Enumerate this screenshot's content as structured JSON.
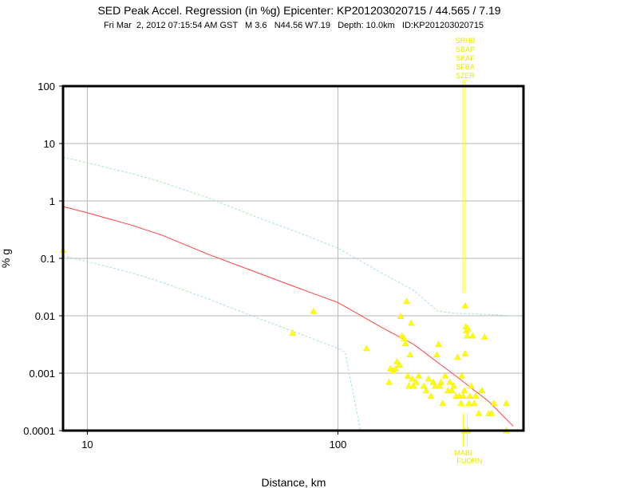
{
  "chart_data": {
    "type": "scatter",
    "title": "SED Peak Accel. Regression (in %g) Epicenter: KP201203020715 / 44.565 / 7.19",
    "subtitle": "Fri Mar  2, 2012 07:15:54 AM GST   M 3.6   N44.56 W7.19   Depth: 10.0km   ID:KP201203020715",
    "xlabel": "Distance, km",
    "ylabel": "% g",
    "xscale": "log",
    "yscale": "log",
    "xlim": [
      8,
      550
    ],
    "ylim": [
      0.0001,
      100
    ],
    "grid": true,
    "x_ticks": [
      {
        "value": 10,
        "label": "10"
      },
      {
        "value": 100,
        "label": "100"
      }
    ],
    "y_ticks": [
      {
        "value": 100,
        "label": "100"
      },
      {
        "value": 10,
        "label": "10"
      },
      {
        "value": 1,
        "label": "1"
      },
      {
        "value": 0.1,
        "label": "0.1"
      },
      {
        "value": 0.01,
        "label": "0.01"
      },
      {
        "value": 0.001,
        "label": "0.001"
      },
      {
        "value": 0.0001,
        "label": "0.0001"
      }
    ],
    "colors": {
      "regression": "#ff4040",
      "bounds": "#a8e8b8",
      "stations": "#ffff00",
      "grid": "#b8b8b8"
    },
    "series": [
      {
        "kind": "line",
        "role": "regression",
        "x": [
          8,
          10,
          15,
          20,
          30,
          50,
          70,
          100,
          150,
          200,
          300,
          400,
          500
        ],
        "y": [
          0.8,
          0.62,
          0.38,
          0.25,
          0.12,
          0.052,
          0.03,
          0.017,
          0.0062,
          0.0032,
          0.00085,
          0.00032,
          0.00012
        ]
      },
      {
        "kind": "line",
        "role": "upper-bound",
        "x": [
          8,
          10,
          15,
          20,
          30,
          50,
          70,
          100,
          150,
          200,
          250,
          300,
          400,
          550
        ],
        "y": [
          5.8,
          4.6,
          3.0,
          2.1,
          1.15,
          0.48,
          0.28,
          0.15,
          0.055,
          0.028,
          0.012,
          0.011,
          0.0105,
          0.0098
        ]
      },
      {
        "kind": "line",
        "role": "lower-bound",
        "x": [
          8,
          10,
          15,
          20,
          30,
          50,
          70,
          100,
          107,
          115,
          123
        ],
        "y": [
          0.11,
          0.088,
          0.056,
          0.038,
          0.02,
          0.0085,
          0.0049,
          0.0027,
          0.0023,
          0.00045,
          0.0001
        ]
      },
      {
        "kind": "points",
        "role": "stations",
        "points": [
          [
            8,
            0.14
          ],
          [
            66,
            0.005
          ],
          [
            80,
            0.012
          ],
          [
            130,
            0.0027
          ],
          [
            160,
            0.0007
          ],
          [
            162,
            0.0012
          ],
          [
            166,
            0.0011
          ],
          [
            170,
            0.0012
          ],
          [
            172,
            0.0016
          ],
          [
            176,
            0.0014
          ],
          [
            178,
            0.0098
          ],
          [
            180,
            0.0045
          ],
          [
            184,
            0.004
          ],
          [
            186,
            0.0033
          ],
          [
            188,
            0.018
          ],
          [
            190,
            0.0009
          ],
          [
            192,
            0.0006
          ],
          [
            194,
            0.0021
          ],
          [
            196,
            0.0075
          ],
          [
            198,
            0.0008
          ],
          [
            200,
            0.0006
          ],
          [
            205,
            0.0007
          ],
          [
            210,
            0.0009
          ],
          [
            220,
            0.0006
          ],
          [
            225,
            0.0005
          ],
          [
            230,
            0.0008
          ],
          [
            235,
            0.0004
          ],
          [
            240,
            0.0007
          ],
          [
            245,
            0.0006
          ],
          [
            248,
            0.0021
          ],
          [
            252,
            0.0032
          ],
          [
            255,
            0.0006
          ],
          [
            258,
            0.0007
          ],
          [
            262,
            0.0003
          ],
          [
            268,
            0.0009
          ],
          [
            275,
            0.0005
          ],
          [
            280,
            0.0007
          ],
          [
            285,
            0.0005
          ],
          [
            290,
            0.0006
          ],
          [
            296,
            0.0004
          ],
          [
            300,
            0.0019
          ],
          [
            305,
            0.0004
          ],
          [
            310,
            0.0003
          ],
          [
            312,
            0.0009
          ],
          [
            316,
            0.0004
          ],
          [
            320,
            0.0005
          ],
          [
            322,
            0.0022
          ],
          [
            324,
            0.0065
          ],
          [
            326,
            0.0055
          ],
          [
            328,
            0.0045
          ],
          [
            330,
            0.006
          ],
          [
            333,
            0.0003
          ],
          [
            336,
            0.0004
          ],
          [
            340,
            0.0006
          ],
          [
            345,
            0.0045
          ],
          [
            350,
            0.0003
          ],
          [
            355,
            0.0004
          ],
          [
            365,
            0.0002
          ],
          [
            375,
            0.0005
          ],
          [
            385,
            0.0043
          ],
          [
            400,
            0.0002
          ],
          [
            410,
            0.0002
          ],
          [
            420,
            0.0003
          ],
          [
            470,
            0.0003
          ],
          [
            470,
            0.0001
          ],
          [
            322,
            0.015
          ],
          [
            320,
            0.0001
          ],
          [
            330,
            0.0001
          ]
        ]
      }
    ],
    "station_labels_top": [
      "SRHB",
      "SBAP",
      "SKAF",
      "SFBA",
      "SZER"
    ],
    "station_labels_bottom": [
      "MABI",
      "FUORN"
    ]
  }
}
